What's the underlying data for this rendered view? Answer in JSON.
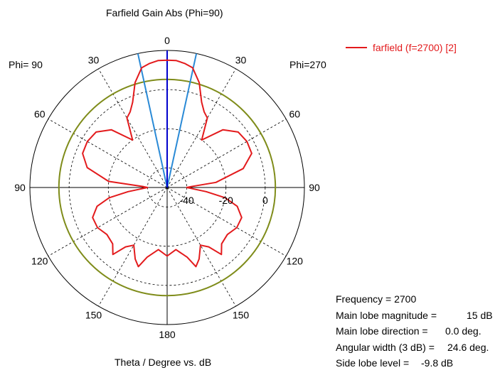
{
  "title": "Farfield Gain Abs (Phi=90)",
  "xlabel": "Theta / Degree vs. dB",
  "phi_left": "Phi= 90",
  "phi_right": "Phi=270",
  "legend_label": "farfield (f=2700) [2]",
  "colors": {
    "pattern": "#e31a1c",
    "main_lobe_direction": "#0000cc",
    "beamwidth_3db": "#2a8ad6",
    "side_lobe_level": "#7f8c1a",
    "grid": "#000000"
  },
  "info": {
    "frequency": {
      "label": "Frequency = 2700",
      "value": ""
    },
    "magnitude": {
      "label": "Main lobe magnitude =",
      "value": "15 dB"
    },
    "direction": {
      "label": "Main lobe direction =",
      "value": "0.0 deg."
    },
    "width": {
      "label": "Angular width (3 dB) =",
      "value": "24.6 deg."
    },
    "sidelobe": {
      "label": "Side lobe level =",
      "value": "-9.8 dB"
    }
  },
  "chart_data": {
    "type": "polar-line",
    "title": "Farfield Gain Abs (Phi=90)",
    "xlabel": "Theta / Degree vs. dB",
    "radial_range": [
      -50,
      20
    ],
    "radial_ticks": [
      "-40",
      "-20",
      "0"
    ],
    "angle_ticks": [
      "0",
      "30",
      "60",
      "90",
      "120",
      "150",
      "180",
      "150",
      "120",
      "90",
      "60",
      "30"
    ],
    "grid": true,
    "legend_position": "top-right",
    "main_lobe_direction_deg": 0,
    "main_lobe_magnitude_db": 15,
    "angular_width_3db_deg": 24.6,
    "side_lobe_level_db": -9.8,
    "sidelobe_circle_db": 5.2,
    "series": [
      {
        "name": "farfield (f=2700) [2]",
        "theta_deg": [
          -180,
          -172,
          -164,
          -160,
          -156,
          -150,
          -145,
          -141,
          -136,
          -128,
          -120,
          -112,
          -105,
          -100,
          -96,
          -92,
          -90,
          -88,
          -84,
          -76,
          -68,
          -60,
          -52,
          -44,
          -36,
          -30,
          -26,
          -22,
          -17,
          -12,
          -8,
          -4,
          0,
          4,
          8,
          12,
          17,
          22,
          26,
          30,
          36,
          44,
          52,
          60,
          68,
          76,
          84,
          88,
          90,
          92,
          96,
          100,
          105,
          112,
          120,
          128,
          136,
          141,
          145,
          150,
          156,
          160,
          164,
          172,
          180
        ],
        "gain_db": [
          -15,
          -18,
          -13,
          -7,
          -10,
          -16,
          -13,
          -6,
          -10,
          -11,
          -9,
          -9,
          -13,
          -20,
          -30,
          -38,
          -40,
          -38,
          -25,
          -10,
          -3.5,
          -3,
          -4,
          -9,
          -20,
          -9,
          -7,
          -3,
          6,
          12.5,
          14,
          15,
          15,
          15,
          14,
          12.5,
          6,
          -3,
          -7,
          -9,
          -20,
          -9,
          -4,
          -3,
          -3.5,
          -8,
          -20,
          -38,
          -40,
          -38,
          -30,
          -20,
          -13,
          -9,
          -9,
          -11,
          -10,
          -6,
          -13,
          -16,
          -10,
          -7,
          -13,
          -18,
          -15
        ]
      }
    ]
  }
}
